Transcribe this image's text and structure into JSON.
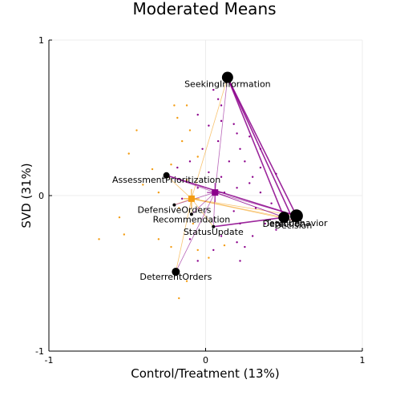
{
  "chart_data": {
    "type": "scatter",
    "title": "Moderated Means",
    "xlabel": "Control/Treatment (13%)",
    "ylabel": "SVD (31%)",
    "xlim": [
      -1,
      1
    ],
    "ylim": [
      -1,
      1
    ],
    "xticks": [
      "-1",
      "0",
      "1"
    ],
    "yticks": [
      "-1",
      "0",
      "1"
    ],
    "grid": true,
    "colors": {
      "control": "#f39c12",
      "treatment": "#8b008b",
      "node": "#000000"
    },
    "nodes": [
      {
        "name": "SeekingInformation",
        "x": 0.14,
        "y": 0.76,
        "size": 7
      },
      {
        "name": "AssessmentPrioritization",
        "x": -0.25,
        "y": 0.13,
        "size": 4
      },
      {
        "name": "DefensiveOrders",
        "x": -0.2,
        "y": -0.06,
        "size": 2
      },
      {
        "name": "Recommendation",
        "x": -0.09,
        "y": -0.12,
        "size": 2
      },
      {
        "name": "Detection",
        "x": 0.5,
        "y": -0.14,
        "size": 7
      },
      {
        "name": "Teambehavior",
        "x": 0.58,
        "y": -0.13,
        "size": 8
      },
      {
        "name": "Decision",
        "x": 0.56,
        "y": -0.16,
        "size": 2
      },
      {
        "name": "StatusUpdate",
        "x": 0.05,
        "y": -0.2,
        "size": 2
      },
      {
        "name": "DeterrentOrders",
        "x": -0.19,
        "y": -0.49,
        "size": 5
      }
    ],
    "series": [
      {
        "name": "",
        "role": "control",
        "mean": {
          "x": -0.09,
          "y": -0.02
        },
        "points": [
          [
            -0.22,
            0.2
          ],
          [
            -0.15,
            0.35
          ],
          [
            -0.18,
            0.5
          ],
          [
            -0.12,
            0.58
          ],
          [
            -0.2,
            0.58
          ],
          [
            -0.1,
            0.42
          ],
          [
            -0.44,
            0.42
          ],
          [
            -0.49,
            0.27
          ],
          [
            -0.34,
            0.17
          ],
          [
            -0.4,
            0.07
          ],
          [
            -0.3,
            0.02
          ],
          [
            -0.55,
            -0.14
          ],
          [
            -0.52,
            -0.25
          ],
          [
            -0.68,
            -0.28
          ],
          [
            -0.3,
            -0.28
          ],
          [
            -0.22,
            -0.33
          ],
          [
            -0.17,
            -0.66
          ],
          [
            -0.12,
            -0.55
          ],
          [
            -0.05,
            -0.35
          ],
          [
            -0.08,
            -0.18
          ],
          [
            -0.12,
            0.1
          ],
          [
            -0.05,
            0.25
          ],
          [
            0.02,
            -0.4
          ],
          [
            0.12,
            -0.32
          ],
          [
            -0.17,
            -0.08
          ]
        ]
      },
      {
        "name": "",
        "role": "treatment",
        "mean": {
          "x": 0.06,
          "y": 0.02
        },
        "points": [
          [
            0.05,
            0.68
          ],
          [
            0.08,
            0.62
          ],
          [
            0.1,
            0.58
          ],
          [
            -0.05,
            0.52
          ],
          [
            0.02,
            0.45
          ],
          [
            0.1,
            0.48
          ],
          [
            0.18,
            0.46
          ],
          [
            0.28,
            0.38
          ],
          [
            0.35,
            0.3
          ],
          [
            0.2,
            0.4
          ],
          [
            0.22,
            0.3
          ],
          [
            0.08,
            0.35
          ],
          [
            -0.02,
            0.3
          ],
          [
            0.15,
            0.22
          ],
          [
            0.25,
            0.22
          ],
          [
            0.35,
            0.18
          ],
          [
            0.45,
            0.14
          ],
          [
            0.3,
            0.12
          ],
          [
            0.1,
            0.12
          ],
          [
            -0.1,
            0.22
          ],
          [
            -0.18,
            0.18
          ],
          [
            0.12,
            0.02
          ],
          [
            0.2,
            0.05
          ],
          [
            0.28,
            0.08
          ],
          [
            0.35,
            0.02
          ],
          [
            0.42,
            -0.05
          ],
          [
            0.18,
            -0.1
          ],
          [
            0.22,
            -0.18
          ],
          [
            0.1,
            -0.26
          ],
          [
            0.2,
            -0.3
          ],
          [
            0.3,
            -0.26
          ],
          [
            0.38,
            -0.18
          ],
          [
            0.45,
            -0.22
          ],
          [
            0.05,
            -0.35
          ],
          [
            -0.05,
            -0.42
          ],
          [
            0.22,
            -0.42
          ],
          [
            0.25,
            -0.33
          ],
          [
            -0.1,
            -0.28
          ],
          [
            -0.15,
            -0.02
          ],
          [
            -0.05,
            0.05
          ],
          [
            0.02,
            0.15
          ],
          [
            0.32,
            -0.08
          ]
        ]
      }
    ]
  }
}
